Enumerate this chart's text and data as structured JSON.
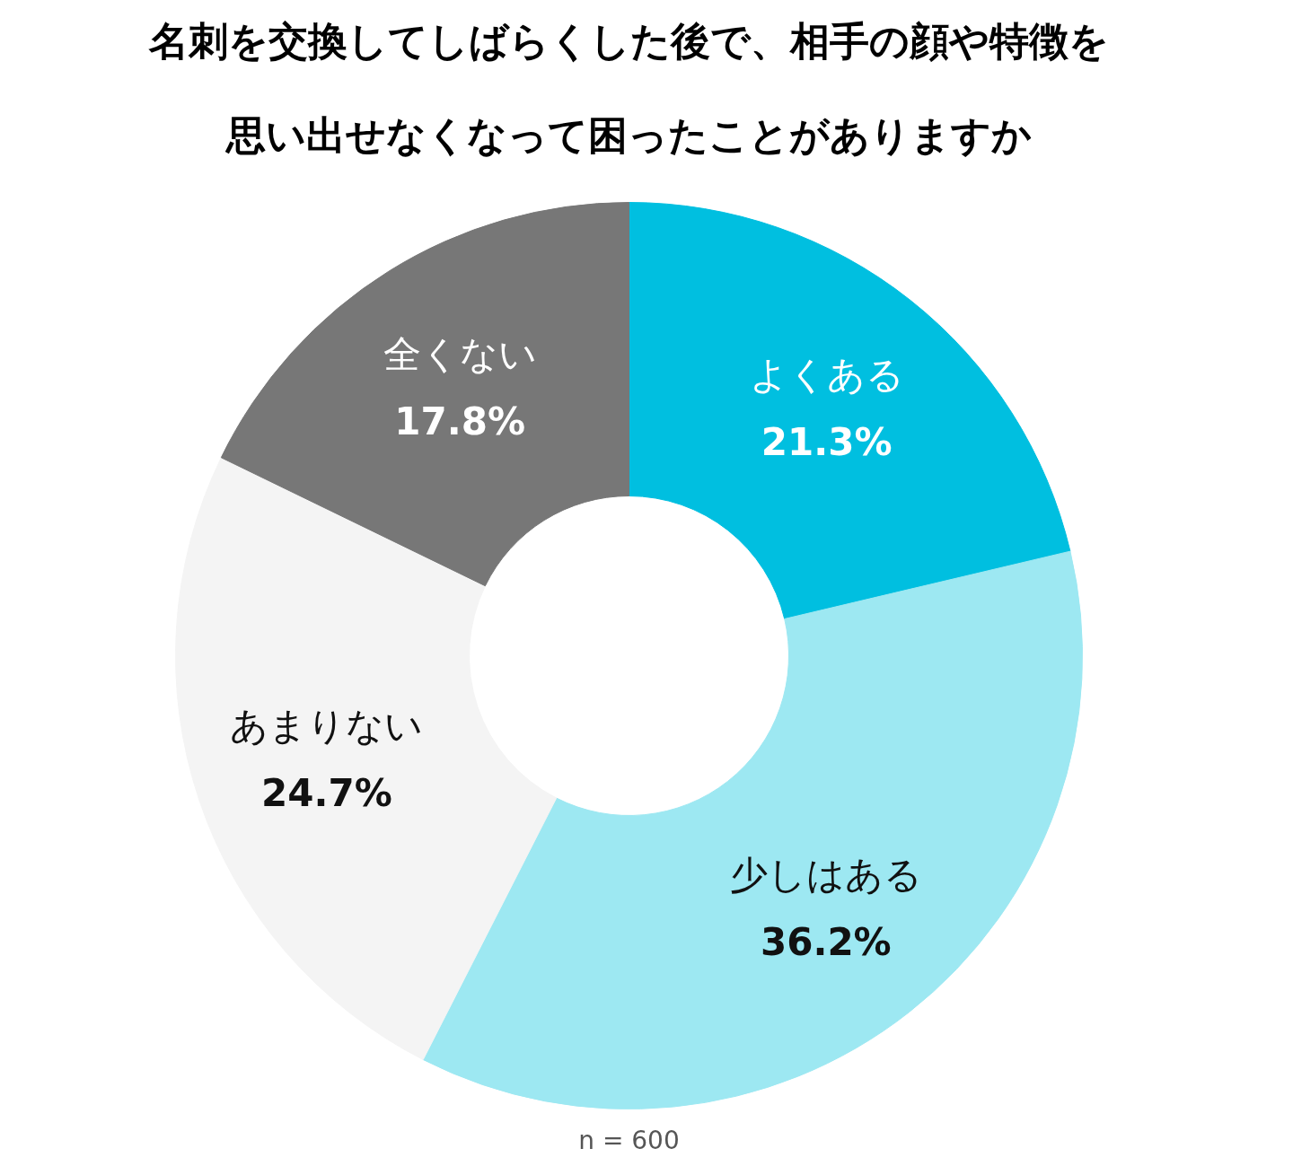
{
  "chart_data": {
    "type": "donut",
    "title": "名刺を交換してしばらくした後で、相手の顔や特徴を思い出せなくなって困ったことがありますか",
    "categories": [
      "よくある",
      "少しはある",
      "あまりない",
      "全くない"
    ],
    "values": [
      21.3,
      36.2,
      24.7,
      17.8
    ],
    "colors": [
      "#00bfe0",
      "#9de8f2",
      "#f4f4f4",
      "#777777"
    ],
    "value_labels": [
      "21.3%",
      "36.2%",
      "24.7%",
      "17.8%"
    ],
    "annotations": [
      "n = 600"
    ]
  }
}
